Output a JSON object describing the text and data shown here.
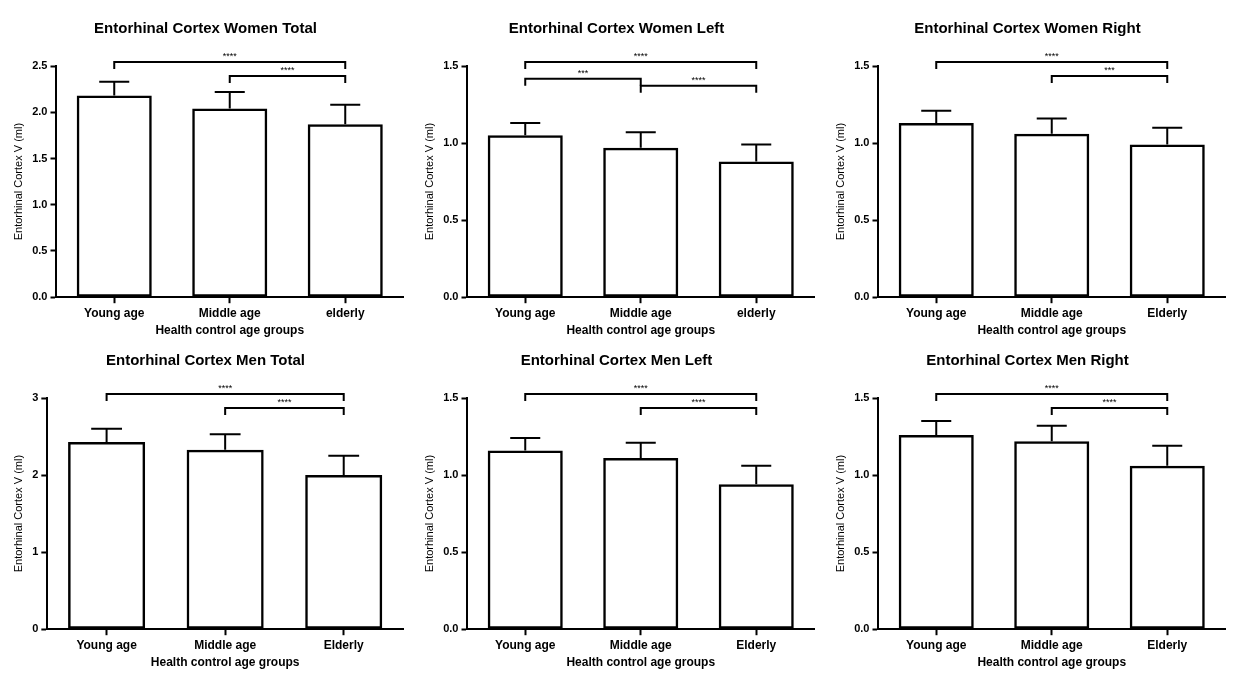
{
  "chart_data": [
    {
      "type": "bar",
      "title": "Entorhinal Cortex Women Total",
      "xlabel": "Health control age groups",
      "ylabel": "Entorhinal Cortex V (ml)",
      "categories": [
        "Young age",
        "Middle age",
        "elderly"
      ],
      "values": [
        2.18,
        2.04,
        1.87
      ],
      "errors": [
        [
          2.18,
          2.33
        ],
        [
          2.04,
          2.22
        ],
        [
          1.87,
          2.08
        ]
      ],
      "color": "#000000",
      "ylim": [
        0,
        2.5
      ],
      "yticks": [
        {
          "value": 0,
          "label": "0.0"
        },
        0.5,
        {
          "value": 1,
          "label": "1.0"
        },
        1.5,
        {
          "value": 2,
          "label": "2.0"
        },
        2.5
      ],
      "annotations": [
        "****",
        "****"
      ]
    },
    {
      "type": "bar",
      "title": "Entorhinal Cortex Women Left",
      "xlabel": "Health control age groups",
      "ylabel": "Entorhinal Cortex V (ml)",
      "categories": [
        "Young age",
        "Middle age",
        "elderly"
      ],
      "values": [
        1.05,
        0.97,
        0.88
      ],
      "errors": [
        [
          1.05,
          1.13
        ],
        [
          0.97,
          1.07
        ],
        [
          0.88,
          0.99
        ]
      ],
      "color": "#000000",
      "ylim": [
        0,
        1.5
      ],
      "yticks": [
        {
          "value": 0,
          "label": "0.0"
        },
        0.5,
        {
          "value": 1,
          "label": "1.0"
        },
        1.5
      ],
      "annotations": [
        "****",
        "***",
        "****"
      ]
    },
    {
      "type": "bar",
      "title": "Entorhinal Cortex Women Right",
      "xlabel": "Health control age groups",
      "ylabel": "Entorhinal Cortex V (ml)",
      "categories": [
        "Young age",
        "Middle age",
        "Elderly"
      ],
      "values": [
        1.13,
        1.06,
        0.99
      ],
      "errors": [
        [
          1.13,
          1.21
        ],
        [
          1.06,
          1.16
        ],
        [
          0.99,
          1.1
        ]
      ],
      "color": "#000000",
      "ylim": [
        0,
        1.5
      ],
      "yticks": [
        {
          "value": 0,
          "label": "0.0"
        },
        0.5,
        {
          "value": 1,
          "label": "1.0"
        },
        1.5
      ],
      "annotations": [
        "****",
        "***"
      ]
    },
    {
      "type": "bar",
      "title": "Entorhinal Cortex Men Total",
      "xlabel": "Health control age groups",
      "ylabel": "Entorhinal Cortex V (ml)",
      "categories": [
        "Young age",
        "Middle age",
        "Elderly"
      ],
      "values": [
        2.43,
        2.33,
        2.0
      ],
      "errors": [
        [
          2.43,
          2.6
        ],
        [
          2.33,
          2.53
        ],
        [
          2.0,
          2.25
        ]
      ],
      "color": "#000000",
      "ylim": [
        0,
        3
      ],
      "yticks": [
        0,
        1,
        2,
        3
      ],
      "annotations": [
        "****",
        "****"
      ]
    },
    {
      "type": "bar",
      "title": "Entorhinal Cortex Men Left",
      "xlabel": "Health control age groups",
      "ylabel": "Entorhinal Cortex V (ml)",
      "categories": [
        "Young age",
        "Middle age",
        "Elderly"
      ],
      "values": [
        1.16,
        1.11,
        0.94
      ],
      "errors": [
        [
          1.16,
          1.24
        ],
        [
          1.11,
          1.21
        ],
        [
          0.94,
          1.06
        ]
      ],
      "color": "#000000",
      "ylim": [
        0,
        1.5
      ],
      "yticks": [
        {
          "value": 0,
          "label": "0.0"
        },
        0.5,
        {
          "value": 1,
          "label": "1.0"
        },
        1.5
      ],
      "annotations": [
        "****",
        "****"
      ]
    },
    {
      "type": "bar",
      "title": "Entorhinal Cortex Men Right",
      "xlabel": "Health control age groups",
      "ylabel": "Entorhinal Cortex V (ml)",
      "categories": [
        "Young age",
        "Middle age",
        "Elderly"
      ],
      "values": [
        1.26,
        1.22,
        1.06
      ],
      "errors": [
        [
          1.26,
          1.35
        ],
        [
          1.22,
          1.32
        ],
        [
          1.06,
          1.19
        ]
      ],
      "color": "#000000",
      "ylim": [
        0,
        1.5
      ],
      "yticks": [
        {
          "value": 0,
          "label": "0.0"
        },
        0.5,
        {
          "value": 1,
          "label": "1.0"
        },
        1.5
      ],
      "annotations": [
        "****",
        "****"
      ]
    }
  ]
}
